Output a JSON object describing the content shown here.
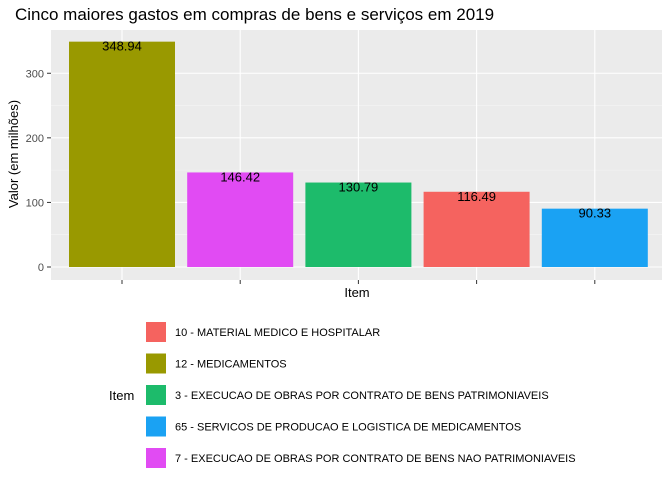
{
  "chart_data": {
    "type": "bar",
    "title": "Cinco maiores gastos em compras de bens e serviços em 2019",
    "xlabel": "Item",
    "ylabel": "Valor (em milhões)",
    "ylim": [
      0,
      350
    ],
    "yticks": [
      0,
      100,
      200,
      300
    ],
    "grid": true,
    "legend_position": "bottom",
    "legend_title": "Item",
    "bars": [
      {
        "item": "12 - MEDICAMENTOS",
        "value": 348.94,
        "label": "348.94",
        "color": "#999900"
      },
      {
        "item": "7 - EXECUCAO DE OBRAS POR CONTRATO DE BENS NAO PATRIMONIAVEIS",
        "value": 146.42,
        "label": "146.42",
        "color": "#E14BF3"
      },
      {
        "item": "3 - EXECUCAO DE OBRAS POR CONTRATO DE BENS PATRIMONIAVEIS",
        "value": 130.79,
        "label": "130.79",
        "color": "#1DBB6B"
      },
      {
        "item": "10 - MATERIAL MEDICO E HOSPITALAR",
        "value": 116.49,
        "label": "116.49",
        "color": "#F5635F"
      },
      {
        "item": "65 - SERVICOS DE PRODUCAO E LOGISTICA DE MEDICAMENTOS",
        "value": 90.33,
        "label": "90.33",
        "color": "#1AA2F3"
      }
    ],
    "legend": [
      {
        "label": "10 - MATERIAL MEDICO E HOSPITALAR",
        "color": "#F5635F"
      },
      {
        "label": "12 - MEDICAMENTOS",
        "color": "#999900"
      },
      {
        "label": "3 - EXECUCAO DE OBRAS POR CONTRATO DE BENS PATRIMONIAVEIS",
        "color": "#1DBB6B"
      },
      {
        "label": "65 - SERVICOS DE PRODUCAO E LOGISTICA DE MEDICAMENTOS",
        "color": "#1AA2F3"
      },
      {
        "label": "7 - EXECUCAO DE OBRAS POR CONTRATO DE BENS NAO PATRIMONIAVEIS",
        "color": "#E14BF3"
      }
    ]
  }
}
